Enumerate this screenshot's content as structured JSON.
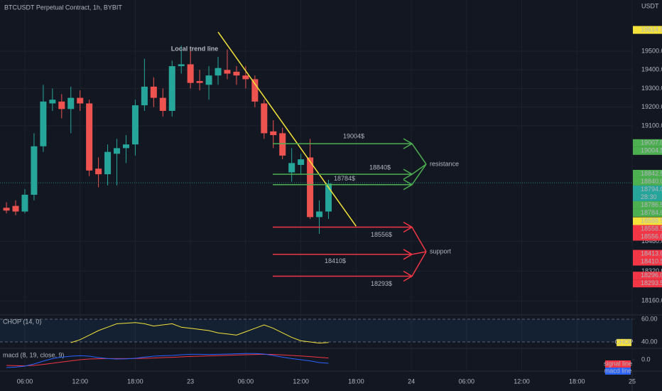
{
  "chart_data": [
    {
      "type": "candlestick",
      "title": "BTCUSDT Perpetual Contract, 1h, BYBIT",
      "y_label": "USDT",
      "x": [
        4,
        5,
        6,
        7,
        8,
        9,
        10,
        11,
        12,
        13,
        14,
        15,
        16,
        17,
        18,
        19,
        20,
        21,
        22,
        23,
        24,
        25,
        26,
        27,
        28,
        29,
        30,
        31,
        32,
        33,
        34,
        35,
        36,
        37,
        38,
        39
      ],
      "open": [
        18660,
        18670,
        18640,
        18730,
        18990,
        19220,
        19230,
        19190,
        19250,
        19220,
        18870,
        18840,
        18950,
        18980,
        19000,
        19210,
        19310,
        19250,
        19180,
        19420,
        19430,
        19340,
        19320,
        19370,
        19400,
        19390,
        19370,
        19350,
        19220,
        19070,
        19060,
        18850,
        18890,
        18930,
        18610,
        18640
      ],
      "high": [
        18690,
        18700,
        18760,
        19060,
        19320,
        19300,
        19270,
        19310,
        19290,
        19240,
        18930,
        19000,
        19030,
        19050,
        19240,
        19460,
        19360,
        19300,
        19450,
        19530,
        19520,
        19400,
        19420,
        19470,
        19510,
        19420,
        19420,
        19370,
        19240,
        19130,
        19090,
        18980,
        18950,
        19030,
        18700,
        18810
      ],
      "low": [
        18630,
        18620,
        18630,
        18700,
        18960,
        19180,
        19140,
        19060,
        19180,
        18830,
        18770,
        18780,
        18780,
        18900,
        18940,
        19180,
        19200,
        19150,
        19150,
        19380,
        19300,
        19290,
        19240,
        19320,
        19350,
        19320,
        19300,
        19200,
        19030,
        18980,
        18920,
        18800,
        18840,
        18600,
        18520,
        18600
      ],
      "close": [
        18645,
        18640,
        18730,
        18990,
        19230,
        19240,
        19190,
        19250,
        19220,
        18860,
        18840,
        18960,
        18980,
        19000,
        19210,
        19310,
        19250,
        19180,
        19420,
        19430,
        19330,
        19330,
        19370,
        19410,
        19380,
        19370,
        19350,
        19230,
        19060,
        19050,
        18940,
        18900,
        18920,
        18610,
        18640,
        18790
      ],
      "up_color": "#26a69a",
      "down_color": "#ef5350",
      "xlim": [
        3.3,
        72
      ],
      "ylim": [
        18085,
        19775
      ],
      "xticks": [
        {
          "value": 6,
          "label": "06:00"
        },
        {
          "value": 12,
          "label": "12:00"
        },
        {
          "value": 18,
          "label": "18:00"
        },
        {
          "value": 24,
          "label": "23"
        },
        {
          "value": 30,
          "label": "06:00"
        },
        {
          "value": 36,
          "label": "12:00"
        },
        {
          "value": 42,
          "label": "18:00"
        },
        {
          "value": 48,
          "label": "24"
        },
        {
          "value": 54,
          "label": "06:00"
        },
        {
          "value": 60,
          "label": "12:00"
        },
        {
          "value": 66,
          "label": "18:00"
        },
        {
          "value": 72,
          "label": "25"
        }
      ],
      "yticks": [
        {
          "value": 19500,
          "label": "19500.0"
        },
        {
          "value": 19400,
          "label": "19400.0"
        },
        {
          "value": 19300,
          "label": "19300.0"
        },
        {
          "value": 19200,
          "label": "19200.0"
        },
        {
          "value": 19100,
          "label": "19100.0"
        },
        {
          "value": 18480,
          "label": "18480.0"
        },
        {
          "value": 18320,
          "label": "18320.0"
        },
        {
          "value": 18160,
          "label": "18160.0"
        }
      ],
      "grid": true,
      "trend_line": {
        "label": "Local trend line",
        "color": "#f5e33b",
        "x": [
          27,
          42
        ],
        "y": [
          19603,
          18561
        ]
      },
      "zones": [
        {
          "label": "resistance",
          "color": "#4caf50",
          "levels": [
            {
              "value": 19004,
              "label": "19004$"
            },
            {
              "value": 18840,
              "label": "18840$"
            },
            {
              "value": 18784,
              "label": "18784$"
            }
          ]
        },
        {
          "label": "support",
          "color": "#f23645",
          "levels": [
            {
              "value": 18556,
              "label": "18556$"
            },
            {
              "value": 18410,
              "label": "18410$"
            },
            {
              "value": 18293,
              "label": "18293$"
            }
          ]
        }
      ],
      "price_tags": [
        {
          "value": 19614.5,
          "label": "19614.5",
          "color": "#f5e33b"
        },
        {
          "value": 19007,
          "label": "19007.0",
          "color": "#4caf50"
        },
        {
          "value": 19004.5,
          "label": "19004.5",
          "color": "#4caf50"
        },
        {
          "value": 18842.5,
          "label": "18842.5",
          "color": "#4caf50"
        },
        {
          "value": 18840,
          "label": "18840.0",
          "color": "#4caf50"
        },
        {
          "value": 18794,
          "label": "18794.0",
          "sublabel": "28:30",
          "color": "#26a69a"
        },
        {
          "value": 18786.5,
          "label": "18786.5",
          "color": "#4caf50"
        },
        {
          "value": 18784,
          "label": "18784.0",
          "color": "#4caf50"
        },
        {
          "value": 18588.5,
          "label": "18588.5",
          "color": "#f5e33b"
        },
        {
          "value": 18558.5,
          "label": "18558.5",
          "color": "#f23645"
        },
        {
          "value": 18556,
          "label": "18556.0",
          "color": "#f23645"
        },
        {
          "value": 18413,
          "label": "18413.0",
          "color": "#f23645"
        },
        {
          "value": 18410.5,
          "label": "18410.5",
          "color": "#f23645"
        },
        {
          "value": 18296,
          "label": "18296.0",
          "color": "#f23645"
        },
        {
          "value": 18293.5,
          "label": "18293.5",
          "color": "#f23645"
        }
      ]
    },
    {
      "type": "line",
      "title": "CHOP (14, 0)",
      "x": [
        4,
        5,
        6,
        7,
        8,
        9,
        10,
        11,
        12,
        13,
        14,
        15,
        16,
        17,
        18,
        19,
        20,
        21,
        22,
        23,
        24,
        25,
        26,
        27,
        28,
        29,
        30,
        31,
        32,
        33,
        34,
        35,
        36,
        37,
        38,
        39
      ],
      "series": [
        {
          "name": "CHOP",
          "color": "#f5e33b",
          "values": [
            null,
            null,
            null,
            null,
            null,
            null,
            null,
            39.4,
            42,
            46,
            50,
            53,
            56,
            56.5,
            57,
            56,
            54,
            55,
            56,
            53,
            52,
            51,
            50,
            48,
            47,
            46,
            49,
            52,
            55,
            52,
            48,
            44,
            41,
            40,
            39,
            39.5
          ]
        }
      ],
      "ylim": [
        34.4,
        63.75
      ],
      "yticks": [
        {
          "value": 60,
          "label": "60.00"
        },
        {
          "value": 40,
          "label": "40.00"
        }
      ]
    },
    {
      "type": "line",
      "title": "macd (8, 19, close, 9)",
      "x": [
        4,
        5,
        6,
        7,
        8,
        9,
        10,
        11,
        12,
        13,
        14,
        15,
        16,
        17,
        18,
        19,
        20,
        21,
        22,
        23,
        24,
        25,
        26,
        27,
        28,
        29,
        30,
        31,
        32,
        33,
        34,
        35,
        36,
        37,
        38,
        39
      ],
      "series": [
        {
          "name": "signal line",
          "color": "#f23645",
          "values": [
            -40,
            -42,
            -43,
            -40,
            -33,
            -25,
            -16,
            -8,
            0,
            5,
            7,
            8,
            8,
            8,
            9,
            10,
            12,
            15,
            17,
            20,
            23,
            25,
            27,
            29,
            31,
            33,
            35,
            37,
            38,
            37,
            34,
            30,
            26,
            22,
            17,
            12
          ]
        },
        {
          "name": "macd line",
          "color": "#2962ff",
          "values": [
            -55,
            -52,
            -45,
            -30,
            -10,
            8,
            18,
            25,
            28,
            25,
            15,
            8,
            5,
            6,
            10,
            18,
            25,
            28,
            30,
            35,
            38,
            38,
            37,
            38,
            40,
            42,
            44,
            44,
            40,
            30,
            18,
            8,
            0,
            -8,
            -20,
            -25
          ]
        }
      ],
      "ylim": [
        -80,
        80
      ],
      "yticks": [
        {
          "value": 0,
          "label": "0.0"
        }
      ],
      "legend": "bottom-right"
    }
  ]
}
